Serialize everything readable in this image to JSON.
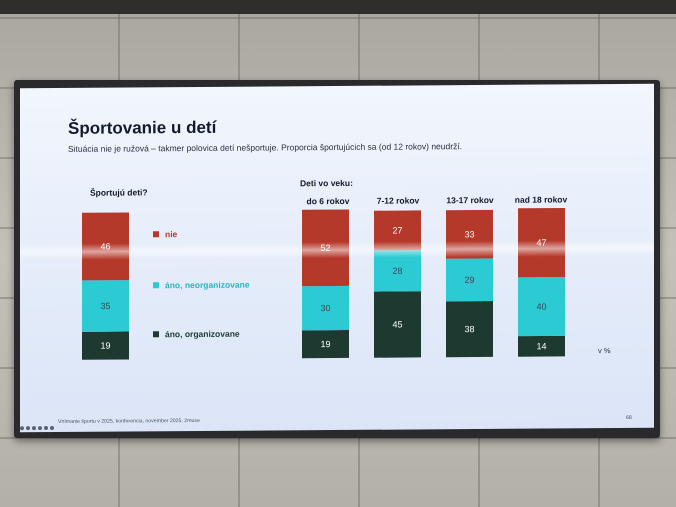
{
  "slide": {
    "title": "Športovanie u detí",
    "subtitle": "Situácia nie je ružová – takmer polovica detí nešportuje. Proporcia športujúcich sa (od 12 rokov) neudrží.",
    "unit": "v %",
    "footer": "Vnímanie športu v 2025, konferencia, november 2025, 2muse",
    "page_number": "68"
  },
  "chart_data": [
    {
      "type": "bar",
      "stacked": true,
      "title": "Športujú deti?",
      "categories": [
        ""
      ],
      "series": [
        {
          "name": "áno, organizovane",
          "values": [
            19
          ]
        },
        {
          "name": "áno, neorganizovane",
          "values": [
            35
          ]
        },
        {
          "name": "nie",
          "values": [
            46
          ]
        }
      ],
      "legend": "right"
    },
    {
      "type": "bar",
      "stacked": true,
      "title": "Deti vo veku:",
      "categories": [
        "do 6 rokov",
        "7-12 rokov",
        "13-17 rokov",
        "nad 18 rokov"
      ],
      "series": [
        {
          "name": "áno, organizovane",
          "values": [
            19,
            45,
            38,
            14
          ]
        },
        {
          "name": "áno, neorganizovane",
          "values": [
            30,
            28,
            29,
            40
          ]
        },
        {
          "name": "nie",
          "values": [
            52,
            27,
            33,
            47
          ]
        }
      ]
    }
  ],
  "colors": {
    "nie": "#b5392b",
    "neorganizovane": "#2ccad2",
    "organizovane": "#1e3a30",
    "label_light": "#ffffff",
    "label_dark": "#3a4a55"
  }
}
